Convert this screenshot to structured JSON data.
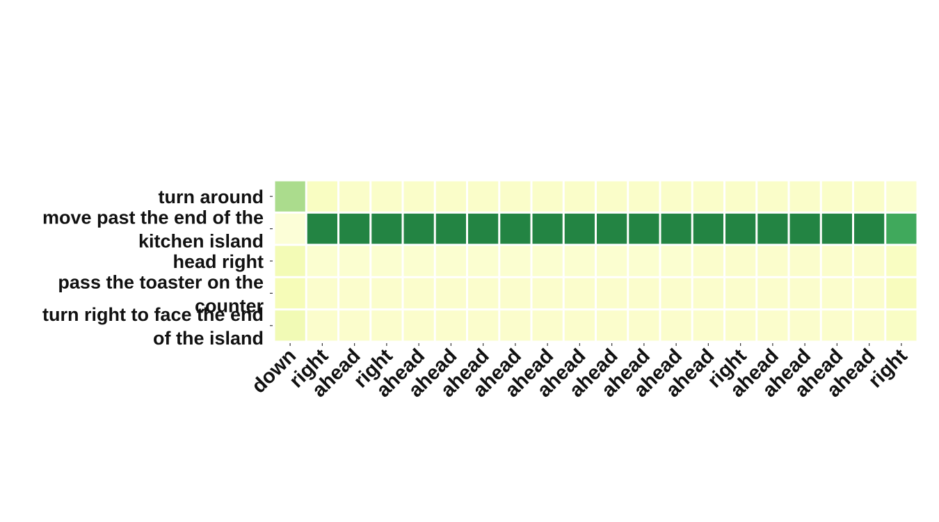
{
  "chart_data": {
    "type": "heatmap",
    "title": "",
    "xlabel": "",
    "ylabel": "",
    "colormap": "YlGn",
    "color_range": [
      0,
      1
    ],
    "grid": false,
    "legend": "none",
    "rows": [
      [
        "turn around"
      ],
      [
        "move past the end of the",
        "kitchen island"
      ],
      [
        "head right"
      ],
      [
        "pass the toaster on the",
        "counter"
      ],
      [
        "turn right to face the end",
        "of the island"
      ]
    ],
    "columns": [
      "down",
      "right",
      "ahead",
      "right",
      "ahead",
      "ahead",
      "ahead",
      "ahead",
      "ahead",
      "ahead",
      "ahead",
      "ahead",
      "ahead",
      "ahead",
      "right",
      "ahead",
      "ahead",
      "ahead",
      "ahead",
      "right"
    ],
    "values": [
      [
        0.38,
        0.1,
        0.08,
        0.08,
        0.08,
        0.08,
        0.08,
        0.08,
        0.08,
        0.08,
        0.08,
        0.08,
        0.08,
        0.08,
        0.08,
        0.08,
        0.08,
        0.08,
        0.08,
        0.06
      ],
      [
        0.04,
        0.75,
        0.75,
        0.75,
        0.75,
        0.75,
        0.75,
        0.75,
        0.75,
        0.75,
        0.75,
        0.75,
        0.75,
        0.75,
        0.75,
        0.75,
        0.75,
        0.75,
        0.75,
        0.63
      ],
      [
        0.14,
        0.06,
        0.06,
        0.06,
        0.06,
        0.06,
        0.06,
        0.06,
        0.06,
        0.06,
        0.06,
        0.06,
        0.06,
        0.07,
        0.07,
        0.07,
        0.07,
        0.07,
        0.07,
        0.1
      ],
      [
        0.13,
        0.07,
        0.07,
        0.07,
        0.07,
        0.07,
        0.07,
        0.07,
        0.07,
        0.07,
        0.07,
        0.07,
        0.07,
        0.07,
        0.07,
        0.07,
        0.07,
        0.07,
        0.07,
        0.11
      ],
      [
        0.15,
        0.07,
        0.07,
        0.07,
        0.07,
        0.07,
        0.07,
        0.07,
        0.07,
        0.07,
        0.07,
        0.07,
        0.07,
        0.07,
        0.07,
        0.07,
        0.07,
        0.07,
        0.07,
        0.09
      ]
    ]
  }
}
